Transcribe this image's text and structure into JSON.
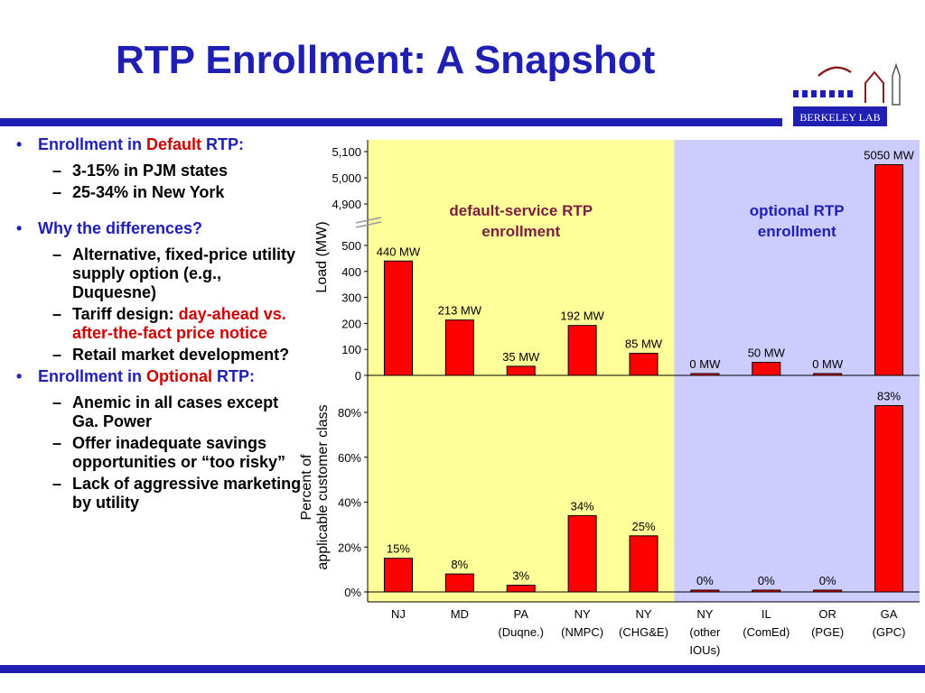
{
  "slide": {
    "title": "RTP Enrollment: A Snapshot",
    "logo_text": "BERKELEY LAB"
  },
  "bullets": [
    {
      "parts": [
        {
          "text": "Enrollment in ",
          "style": "normal"
        },
        {
          "text": "Default",
          "style": "accent"
        },
        {
          "text": " RTP:",
          "style": "normal"
        }
      ],
      "subs": [
        [
          {
            "text": "3-15% in PJM states",
            "style": "normal"
          }
        ],
        [
          {
            "text": "25-34% in New York",
            "style": "normal"
          }
        ]
      ]
    },
    {
      "parts": [
        {
          "text": "Why the differences?",
          "style": "normal"
        }
      ],
      "subs": [
        [
          {
            "text": "Alternative, fixed-price utility supply option (e.g., Duquesne)",
            "style": "normal"
          }
        ],
        [
          {
            "text": "Tariff design: ",
            "style": "normal"
          },
          {
            "text": "day-ahead vs. after-the-fact price notice",
            "style": "accent"
          }
        ],
        [
          {
            "text": "Retail market development?",
            "style": "normal"
          }
        ]
      ]
    },
    {
      "parts": [
        {
          "text": "Enrollment in ",
          "style": "normal"
        },
        {
          "text": "Optional",
          "style": "accent"
        },
        {
          "text": " RTP:",
          "style": "normal"
        }
      ],
      "subs": [
        [
          {
            "text": "Anemic in all cases except Ga. Power",
            "style": "normal"
          }
        ],
        [
          {
            "text": "Offer inadequate savings opportunities or  “too risky”",
            "style": "normal"
          }
        ],
        [
          {
            "text": "Lack of aggressive marketing by utility",
            "style": "normal"
          }
        ]
      ]
    }
  ],
  "chart_data": {
    "type": "bar",
    "categories": [
      [
        "NJ"
      ],
      [
        "MD"
      ],
      [
        "PA",
        "(Duqne.)"
      ],
      [
        "NY",
        "(NMPC)"
      ],
      [
        "NY",
        "(CHG&E)"
      ],
      [
        "NY",
        "(other",
        "IOUs)"
      ],
      [
        "IL",
        "(ComEd)"
      ],
      [
        "OR",
        "(PGE)"
      ],
      [
        "GA",
        "(GPC)"
      ]
    ],
    "regions": [
      {
        "label": [
          "default-service RTP",
          "enrollment"
        ],
        "from": 0,
        "to": 4,
        "color": "#ffff99",
        "text_color": "#7a2040"
      },
      {
        "label": [
          "optional RTP",
          "enrollment"
        ],
        "from": 5,
        "to": 8,
        "color": "#ccccff",
        "text_color": "#1f1fb4"
      }
    ],
    "bar_color": "#ff0000",
    "panels": [
      {
        "name": "load",
        "ylabel": "Load (MW)",
        "values": [
          440,
          213,
          35,
          192,
          85,
          0,
          50,
          0,
          5050
        ],
        "data_labels": [
          "440 MW",
          "213 MW",
          "35 MW",
          "192 MW",
          "85 MW",
          "0 MW",
          "50 MW",
          "0 MW",
          "5050 MW"
        ],
        "yticks": [
          0,
          100,
          200,
          300,
          400,
          500,
          4900,
          5000,
          5100
        ],
        "ytick_labels": [
          "0",
          "100",
          "200",
          "300",
          "400",
          "500",
          "4,900",
          "5,000",
          "5,100"
        ],
        "axis_break": [
          500,
          4900
        ],
        "ylim": [
          0,
          5100
        ]
      },
      {
        "name": "percent",
        "ylabel": [
          "Percent of",
          "applicable customer class"
        ],
        "values": [
          15,
          8,
          3,
          34,
          25,
          0,
          0,
          0,
          83
        ],
        "data_labels": [
          "15%",
          "8%",
          "3%",
          "34%",
          "25%",
          "0%",
          "0%",
          "0%",
          "83%"
        ],
        "yticks": [
          0,
          20,
          40,
          60,
          80
        ],
        "ytick_labels": [
          "0%",
          "20%",
          "40%",
          "60%",
          "80%"
        ],
        "ylim": [
          0,
          100
        ]
      }
    ]
  }
}
